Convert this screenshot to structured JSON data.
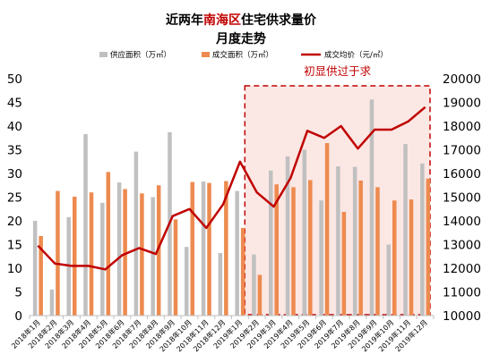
{
  "chart_data": {
    "type": "bar",
    "title_parts": [
      "近两年",
      "南海区",
      "住宅供求量价"
    ],
    "subtitle": "月度走势",
    "categories": [
      "2018年1月",
      "2018年2月",
      "2018年3月",
      "2018年4月",
      "2018年5月",
      "2018年6月",
      "2018年7月",
      "2018年8月",
      "2018年9月",
      "2018年10月",
      "2018年11月",
      "2018年12月",
      "2019年1月",
      "2019年2月",
      "2019年3月",
      "2019年4月",
      "2019年5月",
      "2019年6月",
      "2019年7月",
      "2019年8月",
      "2019年9月",
      "2019年10月",
      "2019年11月",
      "2019年12月"
    ],
    "series": [
      {
        "name": "供应面积（万㎡）",
        "axis": "left",
        "kind": "bar",
        "color": "#c0c0c0",
        "values": [
          20.0,
          5.5,
          20.8,
          38.3,
          23.8,
          28.1,
          34.6,
          25.0,
          38.7,
          14.5,
          28.3,
          13.2,
          26.3,
          12.9,
          30.6,
          33.6,
          35.0,
          24.3,
          31.5,
          31.4,
          45.6,
          15.0,
          36.2,
          32.1
        ]
      },
      {
        "name": "成交面积（万㎡）",
        "axis": "left",
        "kind": "bar",
        "color": "#ed8a4f",
        "values": [
          16.8,
          26.3,
          25.1,
          26.0,
          30.3,
          26.7,
          25.8,
          27.5,
          20.3,
          28.2,
          28.0,
          28.4,
          18.5,
          8.6,
          27.7,
          27.1,
          28.6,
          36.4,
          21.9,
          28.5,
          27.1,
          24.3,
          24.5,
          28.9
        ]
      },
      {
        "name": "成交均价（元/㎡）",
        "axis": "right",
        "kind": "line",
        "color": "#c00000",
        "values": [
          12950,
          12200,
          12100,
          12100,
          11950,
          12550,
          12850,
          12600,
          14200,
          14500,
          13700,
          14700,
          16500,
          15200,
          14600,
          15800,
          17800,
          17500,
          18000,
          17050,
          17850,
          17850,
          18200,
          18800
        ]
      }
    ],
    "y_left": {
      "min": 0,
      "max": 50,
      "step": 5
    },
    "y_right": {
      "min": 10000,
      "max": 20000,
      "step": 1000
    },
    "grid": false,
    "legend_position": "top",
    "annotation": {
      "text": "初显供过于求",
      "from_category": "2019年2月",
      "to_category": "2019年12月",
      "color": "#c00000"
    }
  }
}
